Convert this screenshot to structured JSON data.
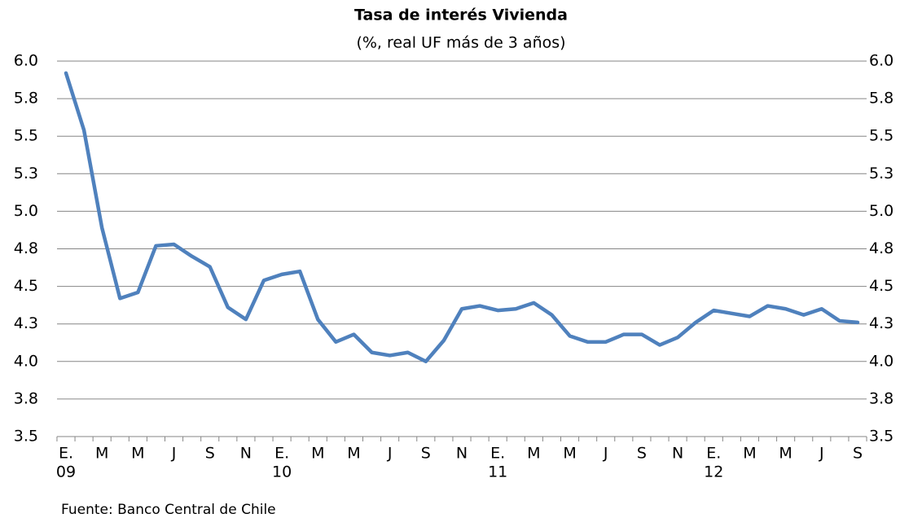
{
  "chart_data": {
    "type": "line",
    "title": "Tasa de interés Vivienda",
    "subtitle": "(%, real UF más de 3 años)",
    "source": "Fuente: Banco Central de Chile",
    "categories": [
      "E.",
      null,
      "M",
      null,
      "M",
      null,
      "J",
      null,
      "S",
      null,
      "N",
      null,
      "E.",
      null,
      "M",
      null,
      "M",
      null,
      "J",
      null,
      "S",
      null,
      "N",
      null,
      "E.",
      null,
      "M",
      null,
      "M",
      null,
      "J",
      null,
      "S",
      null,
      "N",
      null,
      "E.",
      null,
      "M",
      null,
      "M",
      null,
      "J",
      null,
      "S"
    ],
    "x_years": [
      "09",
      null,
      null,
      null,
      null,
      null,
      null,
      null,
      null,
      null,
      null,
      null,
      "10",
      null,
      null,
      null,
      null,
      null,
      null,
      null,
      null,
      null,
      null,
      null,
      "11",
      null,
      null,
      null,
      null,
      null,
      null,
      null,
      null,
      null,
      null,
      null,
      "12",
      null,
      null,
      null,
      null,
      null,
      null,
      null,
      null
    ],
    "series": [
      {
        "name": "Tasa de interés Vivienda",
        "color": "#4f81bd",
        "values": [
          5.92,
          5.54,
          4.89,
          4.42,
          4.46,
          4.77,
          4.78,
          4.7,
          4.63,
          4.36,
          4.28,
          4.54,
          4.58,
          4.6,
          4.28,
          4.13,
          4.18,
          4.06,
          4.04,
          4.06,
          4.0,
          4.14,
          4.35,
          4.37,
          4.34,
          4.35,
          4.39,
          4.31,
          4.17,
          4.13,
          4.13,
          4.18,
          4.18,
          4.11,
          4.16,
          4.26,
          4.34,
          4.32,
          4.3,
          4.37,
          4.35,
          4.31,
          4.35,
          4.27,
          4.26
        ]
      }
    ],
    "ylim": [
      3.5,
      6.0
    ],
    "yticks": [
      3.5,
      {
        "value": 3.75,
        "label": "3.8"
      },
      {
        "value": 4,
        "label": "4.0"
      },
      {
        "value": 4.25,
        "label": "4.3"
      },
      4.5,
      {
        "value": 4.75,
        "label": "4.8"
      },
      {
        "value": 5,
        "label": "5.0"
      },
      {
        "value": 5.25,
        "label": "5.3"
      },
      5.5,
      {
        "value": 5.75,
        "label": "5.8"
      },
      {
        "value": 6,
        "label": "6.0"
      }
    ],
    "y2lim": [
      3.5,
      6.0
    ],
    "y2ticks": [
      3.5,
      {
        "value": 3.75,
        "label": "3.8"
      },
      {
        "value": 4,
        "label": "4.0"
      },
      {
        "value": 4.25,
        "label": "4.3"
      },
      4.5,
      {
        "value": 4.75,
        "label": "4.8"
      },
      {
        "value": 5,
        "label": "5.0"
      },
      {
        "value": 5.25,
        "label": "5.3"
      },
      5.5,
      {
        "value": 5.75,
        "label": "5.8"
      },
      {
        "value": 6,
        "label": "6.0"
      }
    ],
    "grid": true
  }
}
